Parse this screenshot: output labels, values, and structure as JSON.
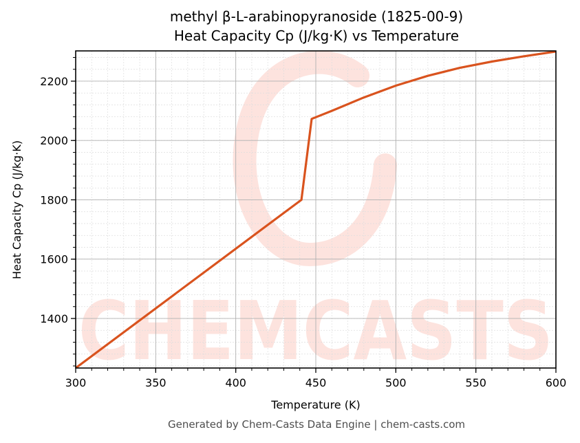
{
  "title": {
    "line1": "methyl β-L-arabinopyranoside (1825-00-9)",
    "line2": "Heat Capacity Cp (J/kg·K) vs Temperature"
  },
  "footer": "Generated by Chem-Casts Data Engine | chem-casts.com",
  "watermark": {
    "text": "CHEMCASTS",
    "color": "#fde3de"
  },
  "colors": {
    "line": "#d9531e",
    "major_grid": "#b0b0b0",
    "minor_grid": "#dddddd",
    "axis": "#000000"
  },
  "chart_data": {
    "type": "line",
    "title": "methyl β-L-arabinopyranoside (1825-00-9) Heat Capacity Cp (J/kg·K) vs Temperature",
    "xlabel": "Temperature (K)",
    "ylabel": "Heat Capacity Cp (J/kg·K)",
    "xlim": [
      300,
      600
    ],
    "ylim": [
      1233,
      2302
    ],
    "xticks": [
      300,
      350,
      400,
      450,
      500,
      550,
      600
    ],
    "xtick_labels": [
      "300",
      "350",
      "400",
      "450",
      "500",
      "550",
      "600"
    ],
    "yticks": [
      1400,
      1600,
      1800,
      2000,
      2200
    ],
    "ytick_labels": [
      "1400",
      "1600",
      "1800",
      "2000",
      "2200"
    ],
    "x_minor_step": 10,
    "y_minor_step": 40,
    "grid": true,
    "legend": null,
    "series": [
      {
        "name": "Cp",
        "x": [
          300,
          441,
          447.4,
          460,
          480,
          500,
          520,
          540,
          560,
          580,
          600
        ],
        "y": [
          1233,
          1800,
          2073,
          2100,
          2145,
          2185,
          2218,
          2245,
          2266,
          2284,
          2300
        ]
      }
    ]
  }
}
